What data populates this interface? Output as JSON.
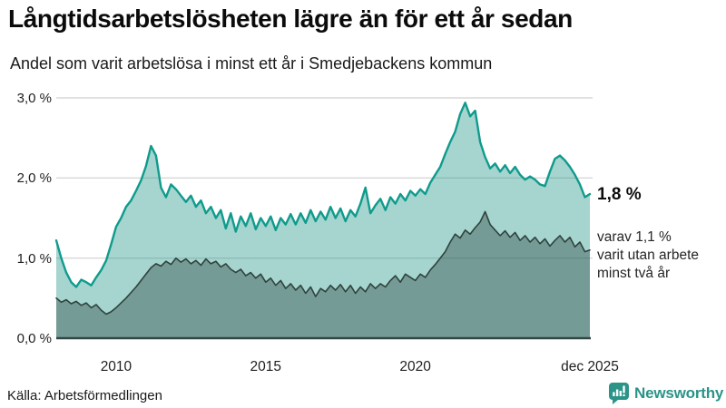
{
  "header": {
    "title": "Långtidsarbetslösheten lägre än för ett år sedan",
    "subtitle": "Andel som varit arbetslösa i minst ett år i Smedjebackens kommun"
  },
  "chart_data": {
    "type": "area",
    "title": "Långtidsarbetslösheten lägre än för ett år sedan",
    "subtitle": "Andel som varit arbetslösa i minst ett år i Smedjebackens kommun",
    "unit": "%",
    "start_year": 2008,
    "points_per_year": 6,
    "x_ticks": [
      {
        "t": 2010,
        "label": "2010"
      },
      {
        "t": 2015,
        "label": "2015"
      },
      {
        "t": 2020,
        "label": "2020"
      },
      {
        "t": 2025.8333,
        "label": "dec 2025"
      }
    ],
    "y_ticks": [
      {
        "v": 0,
        "label": "0,0 %"
      },
      {
        "v": 1,
        "label": "1,0 %"
      },
      {
        "v": 2,
        "label": "2,0 %"
      },
      {
        "v": 3,
        "label": "3,0 %"
      }
    ],
    "ylim": [
      0,
      3.0
    ],
    "grid": true,
    "legend": "none",
    "series": [
      {
        "name": "Arbetslösa minst ett år",
        "latest_value": 1.8,
        "line_color": "#0f9b8c",
        "fill_color": "rgba(32,148,136,0.40)",
        "values": [
          1.22,
          1.0,
          0.82,
          0.7,
          0.64,
          0.73,
          0.7,
          0.66,
          0.76,
          0.85,
          0.97,
          1.17,
          1.39,
          1.5,
          1.64,
          1.72,
          1.84,
          1.97,
          2.15,
          2.4,
          2.28,
          1.88,
          1.76,
          1.92,
          1.86,
          1.78,
          1.7,
          1.78,
          1.64,
          1.72,
          1.56,
          1.64,
          1.5,
          1.6,
          1.37,
          1.56,
          1.33,
          1.52,
          1.4,
          1.56,
          1.36,
          1.5,
          1.4,
          1.52,
          1.35,
          1.5,
          1.42,
          1.55,
          1.42,
          1.56,
          1.44,
          1.6,
          1.46,
          1.58,
          1.48,
          1.64,
          1.5,
          1.62,
          1.46,
          1.6,
          1.52,
          1.68,
          1.88,
          1.56,
          1.66,
          1.74,
          1.6,
          1.76,
          1.68,
          1.8,
          1.72,
          1.84,
          1.78,
          1.86,
          1.8,
          1.94,
          2.04,
          2.14,
          2.3,
          2.45,
          2.58,
          2.8,
          2.94,
          2.77,
          2.84,
          2.45,
          2.26,
          2.12,
          2.18,
          2.08,
          2.16,
          2.06,
          2.14,
          2.04,
          1.98,
          2.02,
          1.98,
          1.92,
          1.9,
          2.08,
          2.24,
          2.28,
          2.22,
          2.14,
          2.04,
          1.92,
          1.76,
          1.8
        ]
      },
      {
        "name": "varav utan arbete minst två år",
        "latest_value": 1.1,
        "line_color": "#2f423d",
        "fill_color": "rgba(38,62,57,0.38)",
        "values": [
          0.5,
          0.45,
          0.48,
          0.43,
          0.46,
          0.41,
          0.44,
          0.38,
          0.42,
          0.35,
          0.3,
          0.33,
          0.38,
          0.44,
          0.5,
          0.57,
          0.64,
          0.72,
          0.8,
          0.88,
          0.93,
          0.9,
          0.96,
          0.92,
          1.0,
          0.95,
          0.99,
          0.93,
          0.97,
          0.91,
          0.99,
          0.93,
          0.96,
          0.89,
          0.93,
          0.86,
          0.82,
          0.86,
          0.78,
          0.82,
          0.75,
          0.8,
          0.7,
          0.75,
          0.66,
          0.72,
          0.62,
          0.68,
          0.6,
          0.66,
          0.56,
          0.64,
          0.52,
          0.62,
          0.58,
          0.66,
          0.6,
          0.67,
          0.58,
          0.66,
          0.56,
          0.64,
          0.58,
          0.68,
          0.62,
          0.68,
          0.64,
          0.72,
          0.78,
          0.7,
          0.8,
          0.76,
          0.72,
          0.8,
          0.76,
          0.85,
          0.92,
          1.0,
          1.08,
          1.2,
          1.3,
          1.25,
          1.35,
          1.3,
          1.38,
          1.45,
          1.58,
          1.42,
          1.35,
          1.28,
          1.34,
          1.26,
          1.32,
          1.22,
          1.28,
          1.2,
          1.26,
          1.18,
          1.24,
          1.15,
          1.22,
          1.28,
          1.2,
          1.26,
          1.14,
          1.2,
          1.08,
          1.1
        ]
      }
    ],
    "gridline_color": "#d8d8d8",
    "baseline_color": "#324742"
  },
  "annotations": {
    "end_value_label": "1,8 %",
    "subset_note": "varav 1,1 %\nvarit utan arbete\nminst två år"
  },
  "footer": {
    "source": "Källa: Arbetsförmedlingen",
    "brand": "Newsworthy",
    "brand_color": "#2a9488",
    "icons": {
      "brand_icon": "newsworthy-bubble-bar-chart-icon"
    }
  }
}
